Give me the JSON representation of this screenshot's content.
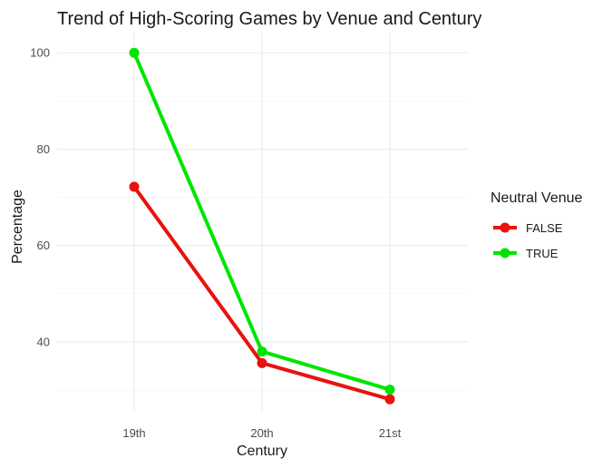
{
  "chart_data": {
    "type": "line",
    "title": "Trend of High-Scoring Games by Venue and Century",
    "xlabel": "Century",
    "ylabel": "Percentage",
    "categories": [
      "19th",
      "20th",
      "21st"
    ],
    "ylim": [
      25.5,
      104
    ],
    "y_ticks": [
      40,
      60,
      80,
      100
    ],
    "grid": true,
    "legend": {
      "title": "Neutral Venue",
      "position": "right"
    },
    "series": [
      {
        "name": "FALSE",
        "color": "#e8120f",
        "values": [
          72.2,
          35.6,
          28.1
        ]
      },
      {
        "name": "TRUE",
        "color": "#00e500",
        "values": [
          100,
          38.0,
          30.1
        ]
      }
    ]
  }
}
